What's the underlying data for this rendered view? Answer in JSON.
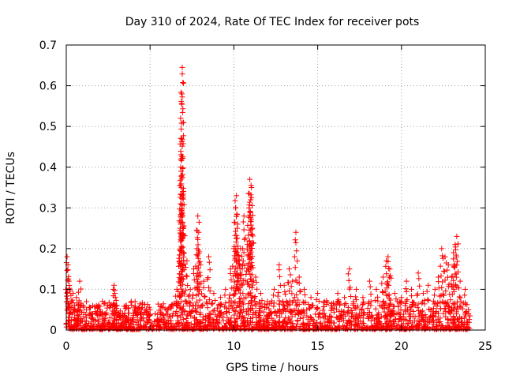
{
  "chart_data": {
    "type": "scatter",
    "title": "Day 310 of 2024, Rate Of TEC Index for receiver pots",
    "xlabel": "GPS time / hours",
    "ylabel": "ROTI / TECUs",
    "xlim": [
      0,
      25
    ],
    "ylim": [
      0,
      0.7
    ],
    "xticks": [
      "0",
      "5",
      "10",
      "15",
      "20",
      "25"
    ],
    "yticks": [
      "0",
      "0.1",
      "0.2",
      "0.3",
      "0.4",
      "0.5",
      "0.6",
      "0.7"
    ],
    "grid": true,
    "marker": "plus",
    "color": "#ff0000",
    "series": [
      {
        "x": [
          0.05,
          0.1,
          0.15,
          0.2,
          0.3,
          0.4,
          0.5,
          0.6,
          0.8,
          1.0,
          1.2,
          1.5,
          1.8,
          2.0,
          2.3,
          2.6,
          2.8,
          2.85,
          2.9,
          3.2,
          3.6,
          4.0,
          4.4,
          4.8,
          5.0,
          5.3,
          5.7,
          6.0,
          6.3,
          6.6,
          6.75,
          6.8,
          6.82,
          6.85,
          6.87,
          6.9,
          6.92,
          6.95,
          7.0,
          7.2,
          7.4,
          7.6,
          7.8,
          7.85,
          7.9,
          8.0,
          8.2,
          8.5,
          8.8,
          9.2,
          9.5,
          9.8,
          10.0,
          10.1,
          10.15,
          10.2,
          10.25,
          10.3,
          10.4,
          10.5,
          10.6,
          10.8,
          10.9,
          10.95,
          11.0,
          11.05,
          11.1,
          11.3,
          11.6,
          12.0,
          12.4,
          12.7,
          13.0,
          13.3,
          13.5,
          13.7,
          13.9,
          14.2,
          14.6,
          15.0,
          15.4,
          15.8,
          16.2,
          16.6,
          16.9,
          17.3,
          17.7,
          18.1,
          18.5,
          18.9,
          19.1,
          19.2,
          19.3,
          19.6,
          20.0,
          20.3,
          20.6,
          21.0,
          21.3,
          21.6,
          22.0,
          22.2,
          22.4,
          22.6,
          22.8,
          23.0,
          23.1,
          23.2,
          23.3,
          23.5,
          23.8,
          24.0
        ],
        "y": [
          0.18,
          0.16,
          0.12,
          0.1,
          0.07,
          0.09,
          0.06,
          0.08,
          0.12,
          0.06,
          0.05,
          0.04,
          0.06,
          0.05,
          0.04,
          0.03,
          0.1,
          0.11,
          0.09,
          0.03,
          0.03,
          0.03,
          0.04,
          0.03,
          0.05,
          0.04,
          0.04,
          0.05,
          0.06,
          0.1,
          0.17,
          0.25,
          0.31,
          0.39,
          0.47,
          0.58,
          0.645,
          0.34,
          0.25,
          0.17,
          0.1,
          0.15,
          0.2,
          0.28,
          0.24,
          0.16,
          0.12,
          0.18,
          0.09,
          0.08,
          0.1,
          0.15,
          0.2,
          0.3,
          0.33,
          0.25,
          0.2,
          0.17,
          0.2,
          0.15,
          0.28,
          0.21,
          0.3,
          0.37,
          0.32,
          0.35,
          0.25,
          0.13,
          0.09,
          0.07,
          0.1,
          0.16,
          0.11,
          0.15,
          0.12,
          0.24,
          0.13,
          0.1,
          0.08,
          0.09,
          0.07,
          0.06,
          0.09,
          0.08,
          0.15,
          0.1,
          0.08,
          0.12,
          0.1,
          0.13,
          0.17,
          0.18,
          0.15,
          0.09,
          0.08,
          0.12,
          0.1,
          0.14,
          0.09,
          0.11,
          0.1,
          0.13,
          0.2,
          0.18,
          0.16,
          0.13,
          0.19,
          0.21,
          0.23,
          0.12,
          0.1,
          0.05
        ]
      }
    ]
  }
}
